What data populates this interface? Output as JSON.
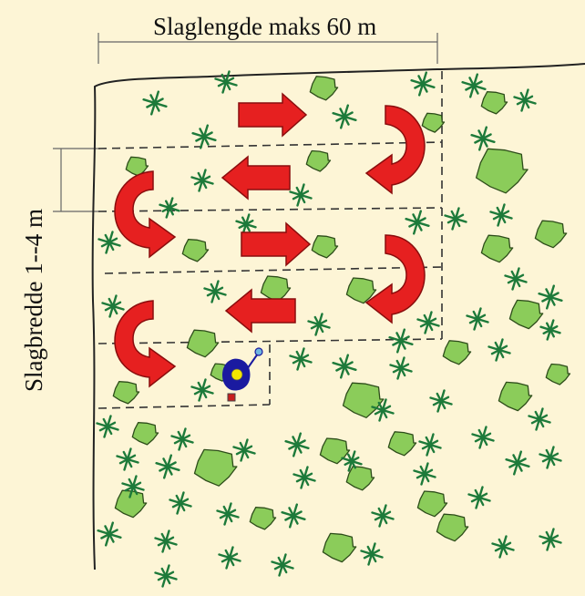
{
  "labels": {
    "length": "Slaglengde maks 60 m",
    "width": "Slagbredde 1--4 m"
  },
  "colors": {
    "background": "#fdf5d6",
    "arrow": "#e62020",
    "bush": "#8bcc5a",
    "sapling": "#1d7a3a",
    "worker_body": "#1a1aa0",
    "worker_head": "#f2e600"
  },
  "icons": [
    "sapling-icon",
    "bush-icon",
    "turn-arrow-icon",
    "straight-arrow-icon",
    "worker-icon"
  ]
}
